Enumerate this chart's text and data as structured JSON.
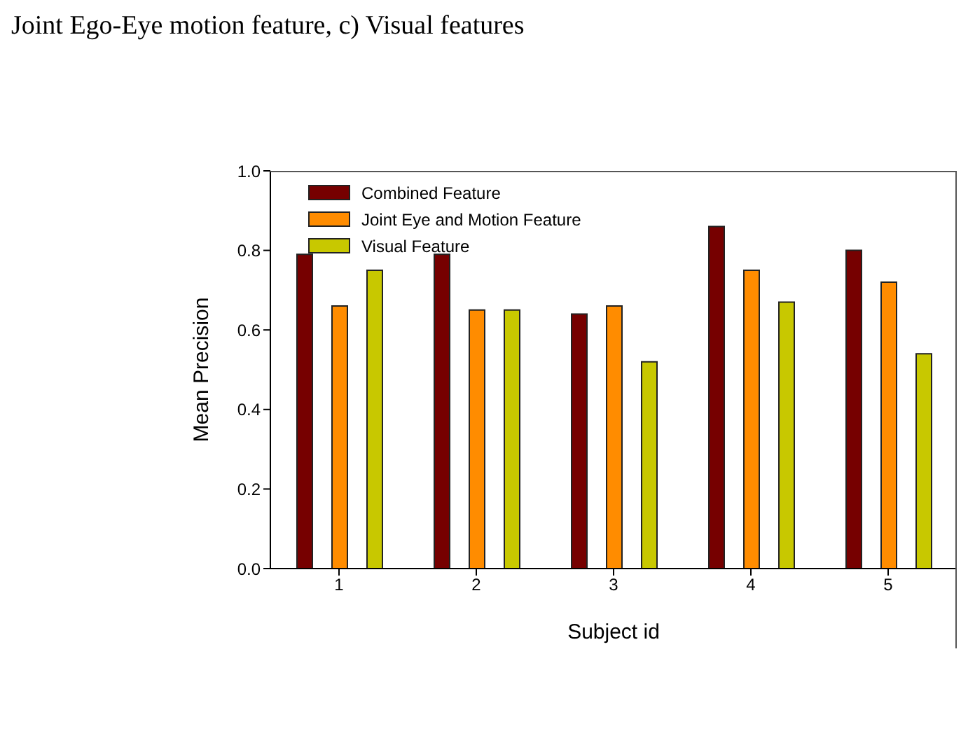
{
  "chart_data": {
    "type": "bar",
    "title": "Joint Ego-Eye motion feature, c) Visual features",
    "xlabel": "Subject id",
    "ylabel": "Mean Precision",
    "categories": [
      "1",
      "2",
      "3",
      "4",
      "5"
    ],
    "series": [
      {
        "name": "Combined Feature",
        "color": "#760000",
        "values": [
          0.79,
          0.79,
          0.64,
          0.86,
          0.8
        ]
      },
      {
        "name": "Joint Eye and Motion Feature",
        "color": "#ff8c00",
        "values": [
          0.66,
          0.65,
          0.66,
          0.75,
          0.72
        ]
      },
      {
        "name": "Visual Feature",
        "color": "#c8c800",
        "values": [
          0.75,
          0.65,
          0.52,
          0.67,
          0.54
        ]
      }
    ],
    "ylim": [
      0,
      1
    ],
    "yticks": [
      {
        "value": 0,
        "label": "0.0"
      },
      {
        "value": 0.2,
        "label": "0.2"
      },
      {
        "value": 0.4,
        "label": "0.4"
      },
      {
        "value": 0.6,
        "label": "0.6"
      },
      {
        "value": 0.8,
        "label": "0.8"
      },
      {
        "value": 1,
        "label": "1.0"
      }
    ],
    "grid": false,
    "legend": "top left"
  }
}
